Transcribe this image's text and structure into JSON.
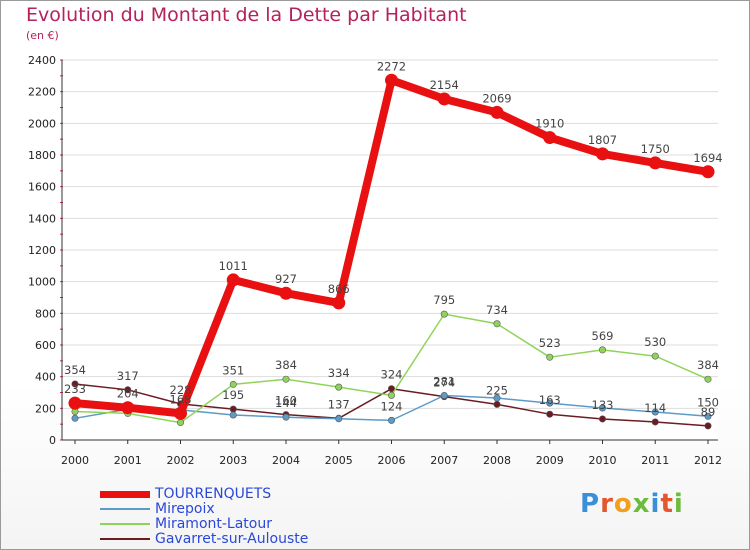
{
  "chart_data": {
    "type": "line",
    "title": "Evolution du Montant de la Dette par Habitant",
    "subtitle": "(en €)",
    "xlabel": "",
    "ylabel": "",
    "ylim": [
      0,
      2400
    ],
    "yticks": [
      0,
      200,
      400,
      600,
      800,
      1000,
      1200,
      1400,
      1600,
      1800,
      2000,
      2200,
      2400
    ],
    "categories": [
      "2000",
      "2001",
      "2002",
      "2003",
      "2004",
      "2005",
      "2006",
      "2007",
      "2008",
      "2009",
      "2010",
      "2011",
      "2012"
    ],
    "series": [
      {
        "name": "Gavarret-sur-Aulouste",
        "color": "#6b1c22",
        "values": [
          354,
          317,
          228,
          195,
          160,
          137,
          324,
          274,
          225,
          163,
          133,
          114,
          89
        ]
      },
      {
        "name": "Mirepoix",
        "color": "#5c9ac8",
        "values": [
          137,
          194,
          190,
          158,
          144,
          134,
          124,
          281,
          265,
          233,
          202,
          177,
          150
        ]
      },
      {
        "name": "Miramont-Latour",
        "color": "#8fd45a",
        "values": [
          180,
          168,
          110,
          351,
          384,
          334,
          282,
          795,
          734,
          523,
          569,
          530,
          384
        ]
      },
      {
        "name": "TOURRENQUETS",
        "color": "#e81010",
        "values": [
          233,
          204,
          168,
          1011,
          927,
          866,
          2272,
          2154,
          2069,
          1910,
          1807,
          1750,
          1694
        ]
      }
    ],
    "labels": {
      "TOURRENQUETS": [
        "233",
        "204",
        "168",
        "1011",
        "927",
        "866",
        "2272",
        "2154",
        "2069",
        "1910",
        "1807",
        "1750",
        "1694"
      ],
      "Mirepoix": [
        "",
        "",
        "",
        "",
        "144",
        "",
        "124",
        "281",
        "",
        "",
        "",
        "",
        "150"
      ],
      "Miramont-Latour": [
        "",
        "",
        "",
        "351",
        "384",
        "334",
        "",
        "795",
        "734",
        "523",
        "569",
        "530",
        "384"
      ],
      "Gavarret-sur-Aulouste": [
        "354",
        "317",
        "228",
        "195",
        "160",
        "137",
        "324",
        "274",
        "225",
        "163",
        "133",
        "114",
        "89"
      ]
    },
    "legend_position": "bottom-left"
  },
  "legend": [
    {
      "name": "TOURRENQUETS",
      "color": "#e81010",
      "text_color": "#2a48d8",
      "thick": true
    },
    {
      "name": "Mirepoix",
      "color": "#5c9ac8",
      "text_color": "#2a48d8",
      "thick": false
    },
    {
      "name": "Miramont-Latour",
      "color": "#8fd45a",
      "text_color": "#2a48d8",
      "thick": false
    },
    {
      "name": "Gavarret-sur-Aulouste",
      "color": "#6b1c22",
      "text_color": "#2a48d8",
      "thick": false
    }
  ],
  "logo": {
    "text": "Proxiti",
    "colors": [
      "#3a8fd8",
      "#e4572e",
      "#f2a01c",
      "#6dbb3c",
      "#3a8fd8",
      "#e4572e",
      "#6dbb3c"
    ]
  }
}
